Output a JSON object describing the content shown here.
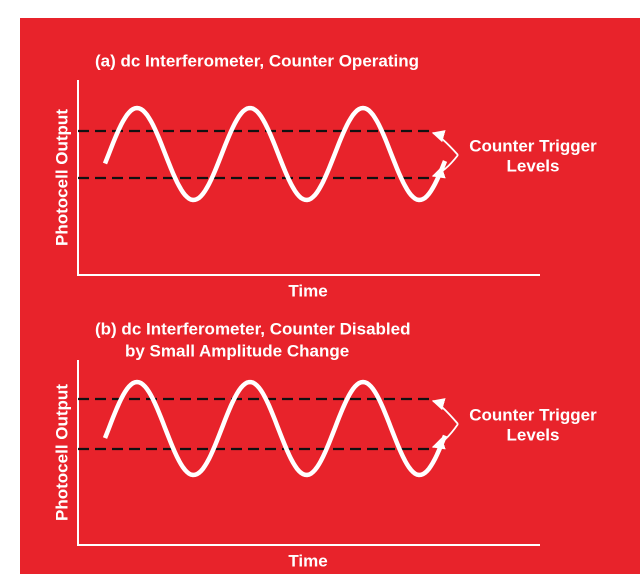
{
  "panels": [
    {
      "title": [
        "(a) dc Interferometer, Counter Operating"
      ],
      "y_label": "Photocell Output",
      "x_label": "Time",
      "annotation": [
        "Counter Trigger",
        "Levels"
      ]
    },
    {
      "title": [
        "(b) dc Interferometer, Counter Disabled",
        "by Small Amplitude Change"
      ],
      "y_label": "Photocell Output",
      "x_label": "Time",
      "annotation": [
        "Counter Trigger",
        "Levels"
      ]
    }
  ]
}
